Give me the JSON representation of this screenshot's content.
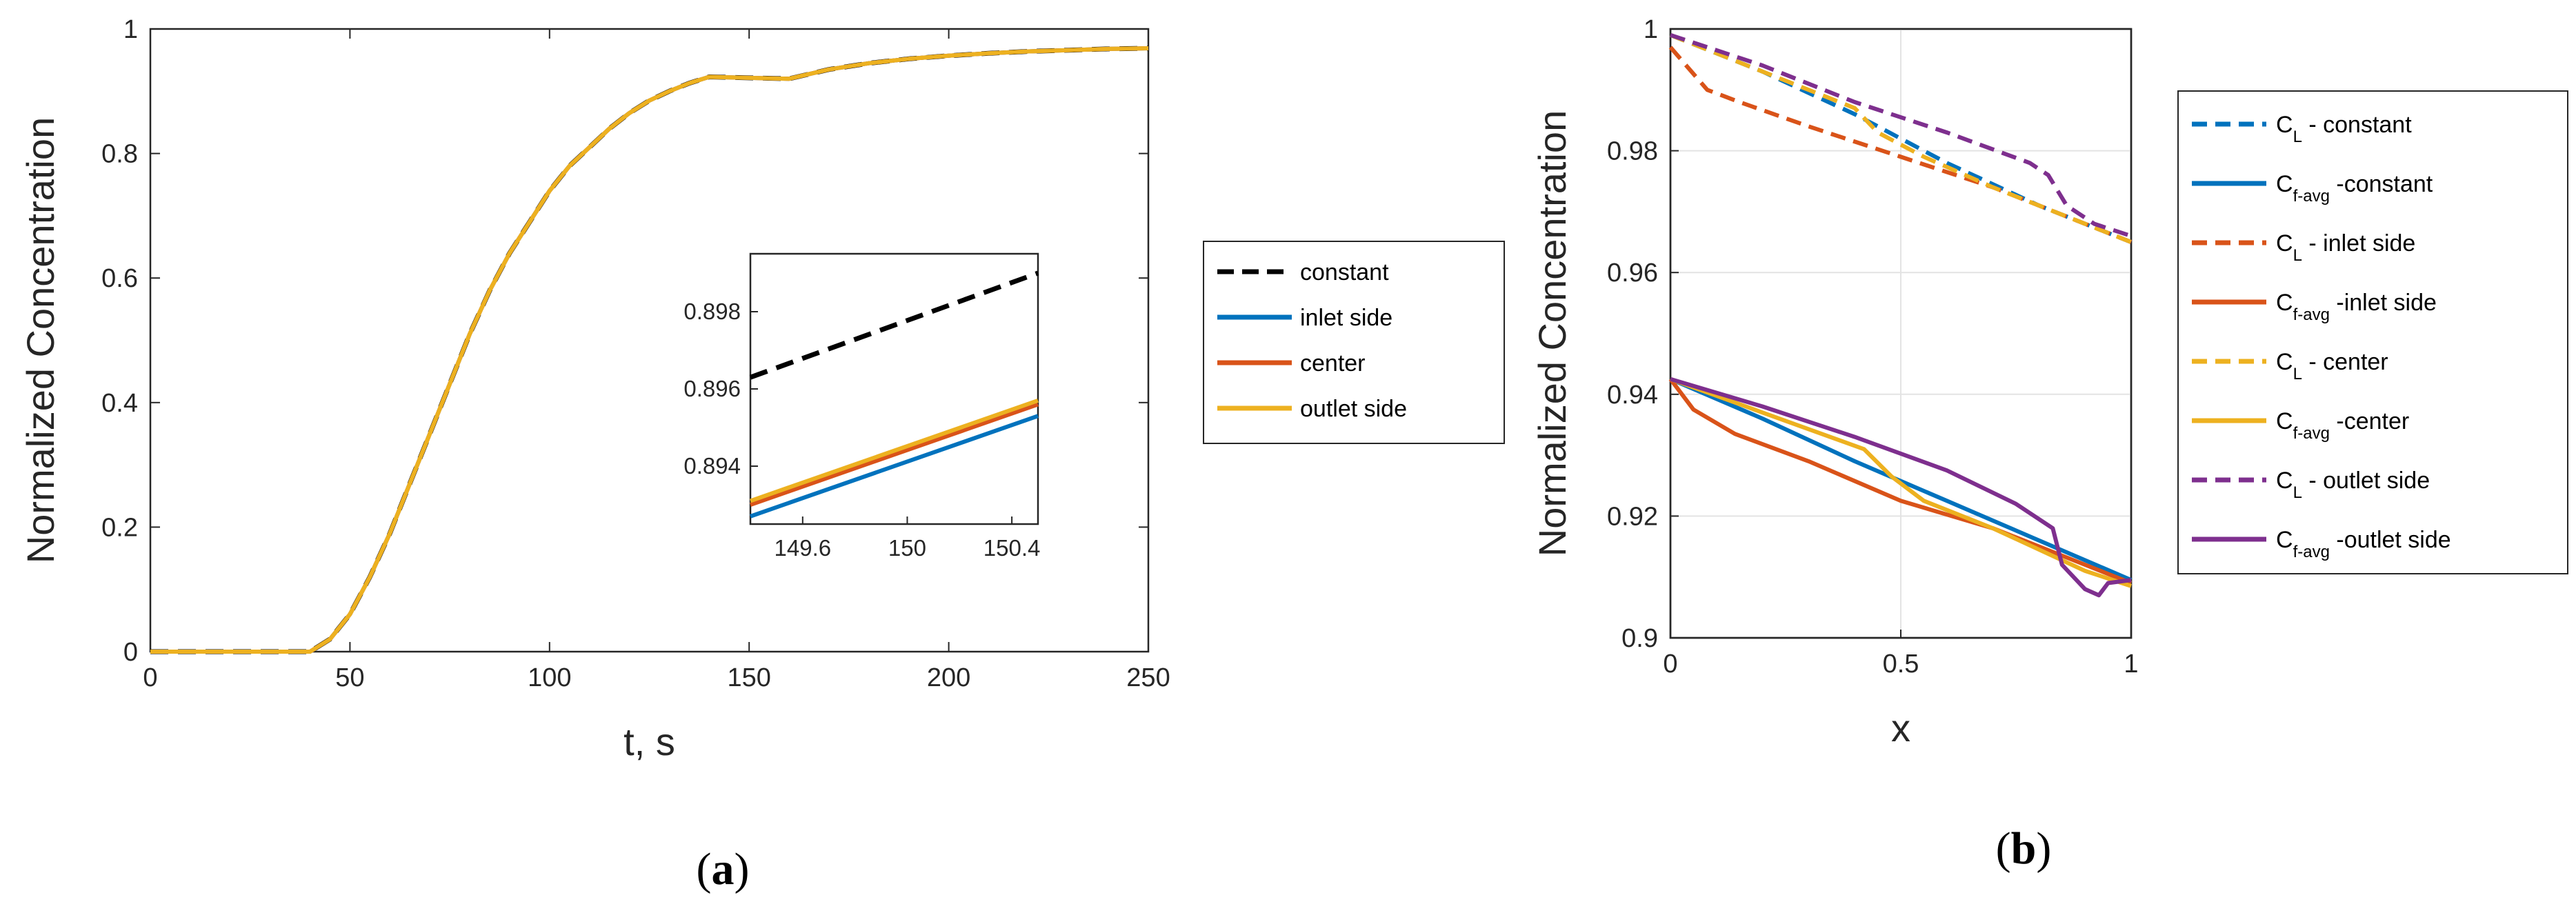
{
  "chart_data": [
    {
      "type": "line",
      "panel_label": "a",
      "title": "",
      "xlabel": "t, s",
      "ylabel": "Normalized Concentration",
      "xlim": [
        0,
        250
      ],
      "ylim": [
        0,
        1
      ],
      "xticks": [
        "0",
        "50",
        "100",
        "150",
        "200",
        "250"
      ],
      "yticks": [
        "0",
        "0.2",
        "0.4",
        "0.6",
        "0.8",
        "1"
      ],
      "grid": false,
      "legend_position": "outside-right",
      "x": [
        0,
        40,
        45,
        50,
        55,
        60,
        65,
        70,
        75,
        80,
        85,
        90,
        95,
        100,
        105,
        110,
        115,
        120,
        125,
        130,
        135,
        140,
        150,
        160,
        170,
        180,
        190,
        200,
        210,
        220,
        230,
        240,
        250
      ],
      "series": [
        {
          "name": "constant",
          "color": "#000000",
          "dash": true,
          "values": [
            0,
            0,
            0.02,
            0.06,
            0.12,
            0.19,
            0.27,
            0.35,
            0.43,
            0.51,
            0.58,
            0.64,
            0.69,
            0.74,
            0.78,
            0.81,
            0.84,
            0.865,
            0.885,
            0.9,
            0.913,
            0.923,
            0.896,
            0.92,
            0.935,
            0.945,
            0.952,
            0.957,
            0.961,
            0.964,
            0.966,
            0.968,
            0.969
          ]
        },
        {
          "name": "inlet side",
          "color": "#0072BD",
          "dash": false,
          "values": [
            0,
            0,
            0.02,
            0.06,
            0.12,
            0.19,
            0.27,
            0.35,
            0.43,
            0.51,
            0.58,
            0.64,
            0.69,
            0.74,
            0.78,
            0.81,
            0.84,
            0.865,
            0.885,
            0.9,
            0.913,
            0.923,
            0.894,
            0.92,
            0.935,
            0.945,
            0.952,
            0.957,
            0.961,
            0.964,
            0.966,
            0.968,
            0.969
          ]
        },
        {
          "name": "center",
          "color": "#D95319",
          "dash": false,
          "values": [
            0,
            0,
            0.02,
            0.06,
            0.12,
            0.19,
            0.27,
            0.35,
            0.43,
            0.51,
            0.58,
            0.64,
            0.69,
            0.74,
            0.78,
            0.81,
            0.84,
            0.865,
            0.885,
            0.9,
            0.913,
            0.923,
            0.894,
            0.92,
            0.935,
            0.945,
            0.952,
            0.957,
            0.961,
            0.964,
            0.966,
            0.968,
            0.969
          ]
        },
        {
          "name": "outlet side",
          "color": "#EDB120",
          "dash": false,
          "values": [
            0,
            0,
            0.02,
            0.06,
            0.12,
            0.19,
            0.27,
            0.35,
            0.43,
            0.51,
            0.58,
            0.64,
            0.69,
            0.74,
            0.78,
            0.81,
            0.84,
            0.865,
            0.885,
            0.9,
            0.913,
            0.923,
            0.894,
            0.92,
            0.935,
            0.945,
            0.952,
            0.957,
            0.961,
            0.964,
            0.966,
            0.968,
            0.969
          ]
        }
      ],
      "inset": {
        "xlim": [
          149.4,
          150.5
        ],
        "ylim": [
          0.8925,
          0.8995
        ],
        "xticks": [
          "149.6",
          "150",
          "150.4"
        ],
        "yticks": [
          "0.894",
          "0.896",
          "0.898"
        ],
        "series": [
          {
            "name": "constant",
            "x": [
              149.4,
              150.5
            ],
            "values": [
              0.8963,
              0.899
            ]
          },
          {
            "name": "inlet side",
            "x": [
              149.4,
              150.5
            ],
            "values": [
              0.8927,
              0.8953
            ]
          },
          {
            "name": "center",
            "x": [
              149.4,
              150.5
            ],
            "values": [
              0.893,
              0.8956
            ]
          },
          {
            "name": "outlet side",
            "x": [
              149.4,
              150.5
            ],
            "values": [
              0.8931,
              0.8957
            ]
          }
        ]
      }
    },
    {
      "type": "line",
      "panel_label": "b",
      "title": "",
      "xlabel": "x",
      "ylabel": "Normalized Concentration",
      "xlim": [
        0,
        1
      ],
      "ylim": [
        0.9,
        1
      ],
      "xticks": [
        "0",
        "0.5",
        "1"
      ],
      "yticks": [
        "0.9",
        "0.92",
        "0.94",
        "0.96",
        "0.98",
        "1"
      ],
      "grid": true,
      "legend_position": "outside-right",
      "series": [
        {
          "name": "C_L - constant",
          "legend_base": "C",
          "legend_sub": "L",
          "legend_rest": " - constant",
          "color": "#0072BD",
          "dash": true,
          "x": [
            0,
            0.2,
            0.4,
            0.6,
            0.8,
            1.0
          ],
          "values": [
            0.999,
            0.993,
            0.986,
            0.978,
            0.971,
            0.965
          ]
        },
        {
          "name": "C_f-avg -constant",
          "legend_base": "C",
          "legend_sub": "f-avg",
          "legend_rest": " -constant",
          "color": "#0072BD",
          "dash": false,
          "x": [
            0,
            0.2,
            0.4,
            0.6,
            0.8,
            1.0
          ],
          "values": [
            0.9425,
            0.936,
            0.929,
            0.9225,
            0.916,
            0.9095
          ]
        },
        {
          "name": "C_L - inlet side",
          "legend_base": "C",
          "legend_sub": "L",
          "legend_rest": " - inlet side",
          "color": "#D95319",
          "dash": true,
          "x": [
            0,
            0.08,
            0.15,
            0.3,
            0.5,
            0.7,
            0.9,
            1.0
          ],
          "values": [
            0.997,
            0.99,
            0.988,
            0.984,
            0.979,
            0.974,
            0.968,
            0.965
          ]
        },
        {
          "name": "C_f-avg -inlet side",
          "legend_base": "C",
          "legend_sub": "f-avg",
          "legend_rest": " -inlet side",
          "color": "#D95319",
          "dash": false,
          "x": [
            0,
            0.05,
            0.14,
            0.3,
            0.5,
            0.7,
            0.9,
            1.0
          ],
          "values": [
            0.9425,
            0.9375,
            0.9335,
            0.929,
            0.9225,
            0.918,
            0.912,
            0.909
          ]
        },
        {
          "name": "C_L - center",
          "legend_base": "C",
          "legend_sub": "L",
          "legend_rest": " - center",
          "color": "#EDB120",
          "dash": true,
          "x": [
            0,
            0.2,
            0.4,
            0.45,
            0.55,
            0.7,
            0.9,
            1.0
          ],
          "values": [
            0.999,
            0.993,
            0.987,
            0.983,
            0.979,
            0.974,
            0.968,
            0.965
          ]
        },
        {
          "name": "C_f-avg -center",
          "legend_base": "C",
          "legend_sub": "f-avg",
          "legend_rest": " -center",
          "color": "#EDB120",
          "dash": false,
          "x": [
            0,
            0.2,
            0.42,
            0.48,
            0.55,
            0.7,
            0.9,
            1.0
          ],
          "values": [
            0.9425,
            0.937,
            0.931,
            0.9265,
            0.9225,
            0.918,
            0.911,
            0.9085
          ]
        },
        {
          "name": "C_L - outlet side",
          "legend_base": "C",
          "legend_sub": "L",
          "legend_rest": " - outlet side",
          "color": "#7E2F8E",
          "dash": true,
          "x": [
            0,
            0.2,
            0.4,
            0.6,
            0.78,
            0.82,
            0.86,
            0.92,
            1.0
          ],
          "values": [
            0.999,
            0.994,
            0.988,
            0.983,
            0.978,
            0.976,
            0.971,
            0.968,
            0.966
          ]
        },
        {
          "name": "C_f-avg -outlet side",
          "legend_base": "C",
          "legend_sub": "f-avg",
          "legend_rest": " -outlet side",
          "color": "#7E2F8E",
          "dash": false,
          "x": [
            0,
            0.2,
            0.4,
            0.6,
            0.75,
            0.83,
            0.85,
            0.9,
            0.93,
            0.95,
            1.0
          ],
          "values": [
            0.9425,
            0.938,
            0.933,
            0.9275,
            0.922,
            0.918,
            0.912,
            0.908,
            0.907,
            0.909,
            0.9095
          ]
        }
      ]
    }
  ]
}
